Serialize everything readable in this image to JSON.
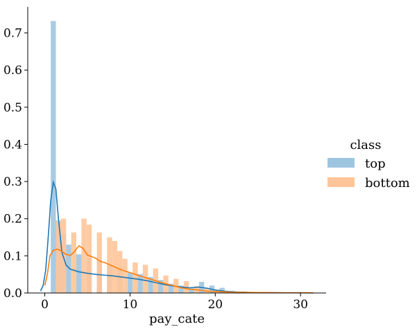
{
  "chart_data": {
    "type": "histogram",
    "xlabel": "pay_cate",
    "ylabel": "",
    "xlim": [
      -2,
      33
    ],
    "ylim": [
      0,
      0.77
    ],
    "xticks": [
      0,
      10,
      20,
      30
    ],
    "yticks": [
      0.0,
      0.1,
      0.2,
      0.3,
      0.4,
      0.5,
      0.6,
      0.7
    ],
    "bin_width": 0.6,
    "legend": {
      "title": "class",
      "position": "right"
    },
    "series": [
      {
        "name": "top",
        "bar_color": "#9ec5e0",
        "line_color": "#1f77b4",
        "bars": [
          [
            0.7,
            0.732
          ],
          [
            1.3,
            0.195
          ],
          [
            1.9,
            0.158
          ],
          [
            2.5,
            0.13
          ],
          [
            3.7,
            0.104
          ],
          [
            4.9,
            0.093
          ],
          [
            6.1,
            0.089
          ],
          [
            7.3,
            0.077
          ],
          [
            8.5,
            0.069
          ],
          [
            9.7,
            0.055
          ],
          [
            10.9,
            0.051
          ],
          [
            12.1,
            0.043
          ],
          [
            13.3,
            0.035
          ],
          [
            14.5,
            0.025
          ],
          [
            15.7,
            0.02
          ],
          [
            16.9,
            0.013
          ],
          [
            18.1,
            0.03
          ],
          [
            19.3,
            0.02
          ],
          [
            20.5,
            0.014
          ],
          [
            21.7,
            0.006
          ],
          [
            22.9,
            0.004
          ],
          [
            24.1,
            0.003
          ],
          [
            25.3,
            0.002
          ],
          [
            26.5,
            0.002
          ],
          [
            27.7,
            0.001
          ],
          [
            28.9,
            0.001
          ],
          [
            30.1,
            0.001
          ]
        ],
        "kde": [
          [
            -0.5,
            0.005
          ],
          [
            -0.2,
            0.02
          ],
          [
            0.1,
            0.06
          ],
          [
            0.4,
            0.15
          ],
          [
            0.7,
            0.25
          ],
          [
            1.0,
            0.298
          ],
          [
            1.3,
            0.28
          ],
          [
            1.6,
            0.2
          ],
          [
            2.0,
            0.11
          ],
          [
            2.5,
            0.075
          ],
          [
            3.0,
            0.064
          ],
          [
            4.0,
            0.057
          ],
          [
            5.0,
            0.053
          ],
          [
            6.0,
            0.05
          ],
          [
            7.0,
            0.048
          ],
          [
            8.0,
            0.046
          ],
          [
            9.0,
            0.043
          ],
          [
            10.0,
            0.04
          ],
          [
            11.0,
            0.037
          ],
          [
            12.0,
            0.033
          ],
          [
            13.0,
            0.028
          ],
          [
            14.0,
            0.023
          ],
          [
            15.0,
            0.019
          ],
          [
            16.0,
            0.016
          ],
          [
            17.0,
            0.014
          ],
          [
            18.0,
            0.016
          ],
          [
            19.0,
            0.013
          ],
          [
            20.0,
            0.008
          ],
          [
            21.0,
            0.005
          ],
          [
            22.0,
            0.003
          ],
          [
            24.0,
            0.0015
          ],
          [
            26.0,
            0.001
          ],
          [
            28.0,
            0.0007
          ],
          [
            30.0,
            0.0005
          ],
          [
            31.5,
            0.0003
          ]
        ]
      },
      {
        "name": "bottom",
        "bar_color": "#ffc599",
        "line_color": "#ff7f0e",
        "bars": [
          [
            1.3,
            0.193
          ],
          [
            1.9,
            0.2
          ],
          [
            3.1,
            0.163
          ],
          [
            4.3,
            0.2
          ],
          [
            4.9,
            0.184
          ],
          [
            6.1,
            0.163
          ],
          [
            7.3,
            0.15
          ],
          [
            7.9,
            0.14
          ],
          [
            8.5,
            0.113
          ],
          [
            9.1,
            0.092
          ],
          [
            10.3,
            0.082
          ],
          [
            11.5,
            0.076
          ],
          [
            12.7,
            0.066
          ],
          [
            13.9,
            0.047
          ],
          [
            15.1,
            0.038
          ],
          [
            16.3,
            0.032
          ],
          [
            17.5,
            0.018
          ],
          [
            18.7,
            0.012
          ],
          [
            19.9,
            0.008
          ],
          [
            21.1,
            0.005
          ],
          [
            22.3,
            0.004
          ],
          [
            23.5,
            0.003
          ],
          [
            24.7,
            0.002
          ],
          [
            25.9,
            0.002
          ],
          [
            27.1,
            0.001
          ],
          [
            28.3,
            0.001
          ],
          [
            29.5,
            0.001
          ]
        ],
        "kde": [
          [
            0.0,
            0.02
          ],
          [
            0.3,
            0.05
          ],
          [
            0.6,
            0.1
          ],
          [
            1.0,
            0.115
          ],
          [
            1.5,
            0.118
          ],
          [
            2.0,
            0.112
          ],
          [
            2.5,
            0.104
          ],
          [
            3.0,
            0.101
          ],
          [
            3.5,
            0.112
          ],
          [
            4.0,
            0.127
          ],
          [
            4.5,
            0.12
          ],
          [
            5.0,
            0.102
          ],
          [
            5.5,
            0.098
          ],
          [
            6.0,
            0.093
          ],
          [
            6.5,
            0.085
          ],
          [
            7.0,
            0.082
          ],
          [
            7.5,
            0.077
          ],
          [
            8.0,
            0.072
          ],
          [
            9.0,
            0.062
          ],
          [
            10.0,
            0.055
          ],
          [
            11.0,
            0.047
          ],
          [
            12.0,
            0.04
          ],
          [
            13.0,
            0.033
          ],
          [
            14.0,
            0.026
          ],
          [
            15.0,
            0.02
          ],
          [
            16.0,
            0.014
          ],
          [
            17.0,
            0.01
          ],
          [
            18.0,
            0.008
          ],
          [
            19.0,
            0.005
          ],
          [
            20.0,
            0.004
          ],
          [
            22.0,
            0.002
          ],
          [
            24.0,
            0.0015
          ],
          [
            26.0,
            0.001
          ],
          [
            28.0,
            0.0007
          ],
          [
            31.5,
            0.0003
          ]
        ]
      }
    ]
  }
}
